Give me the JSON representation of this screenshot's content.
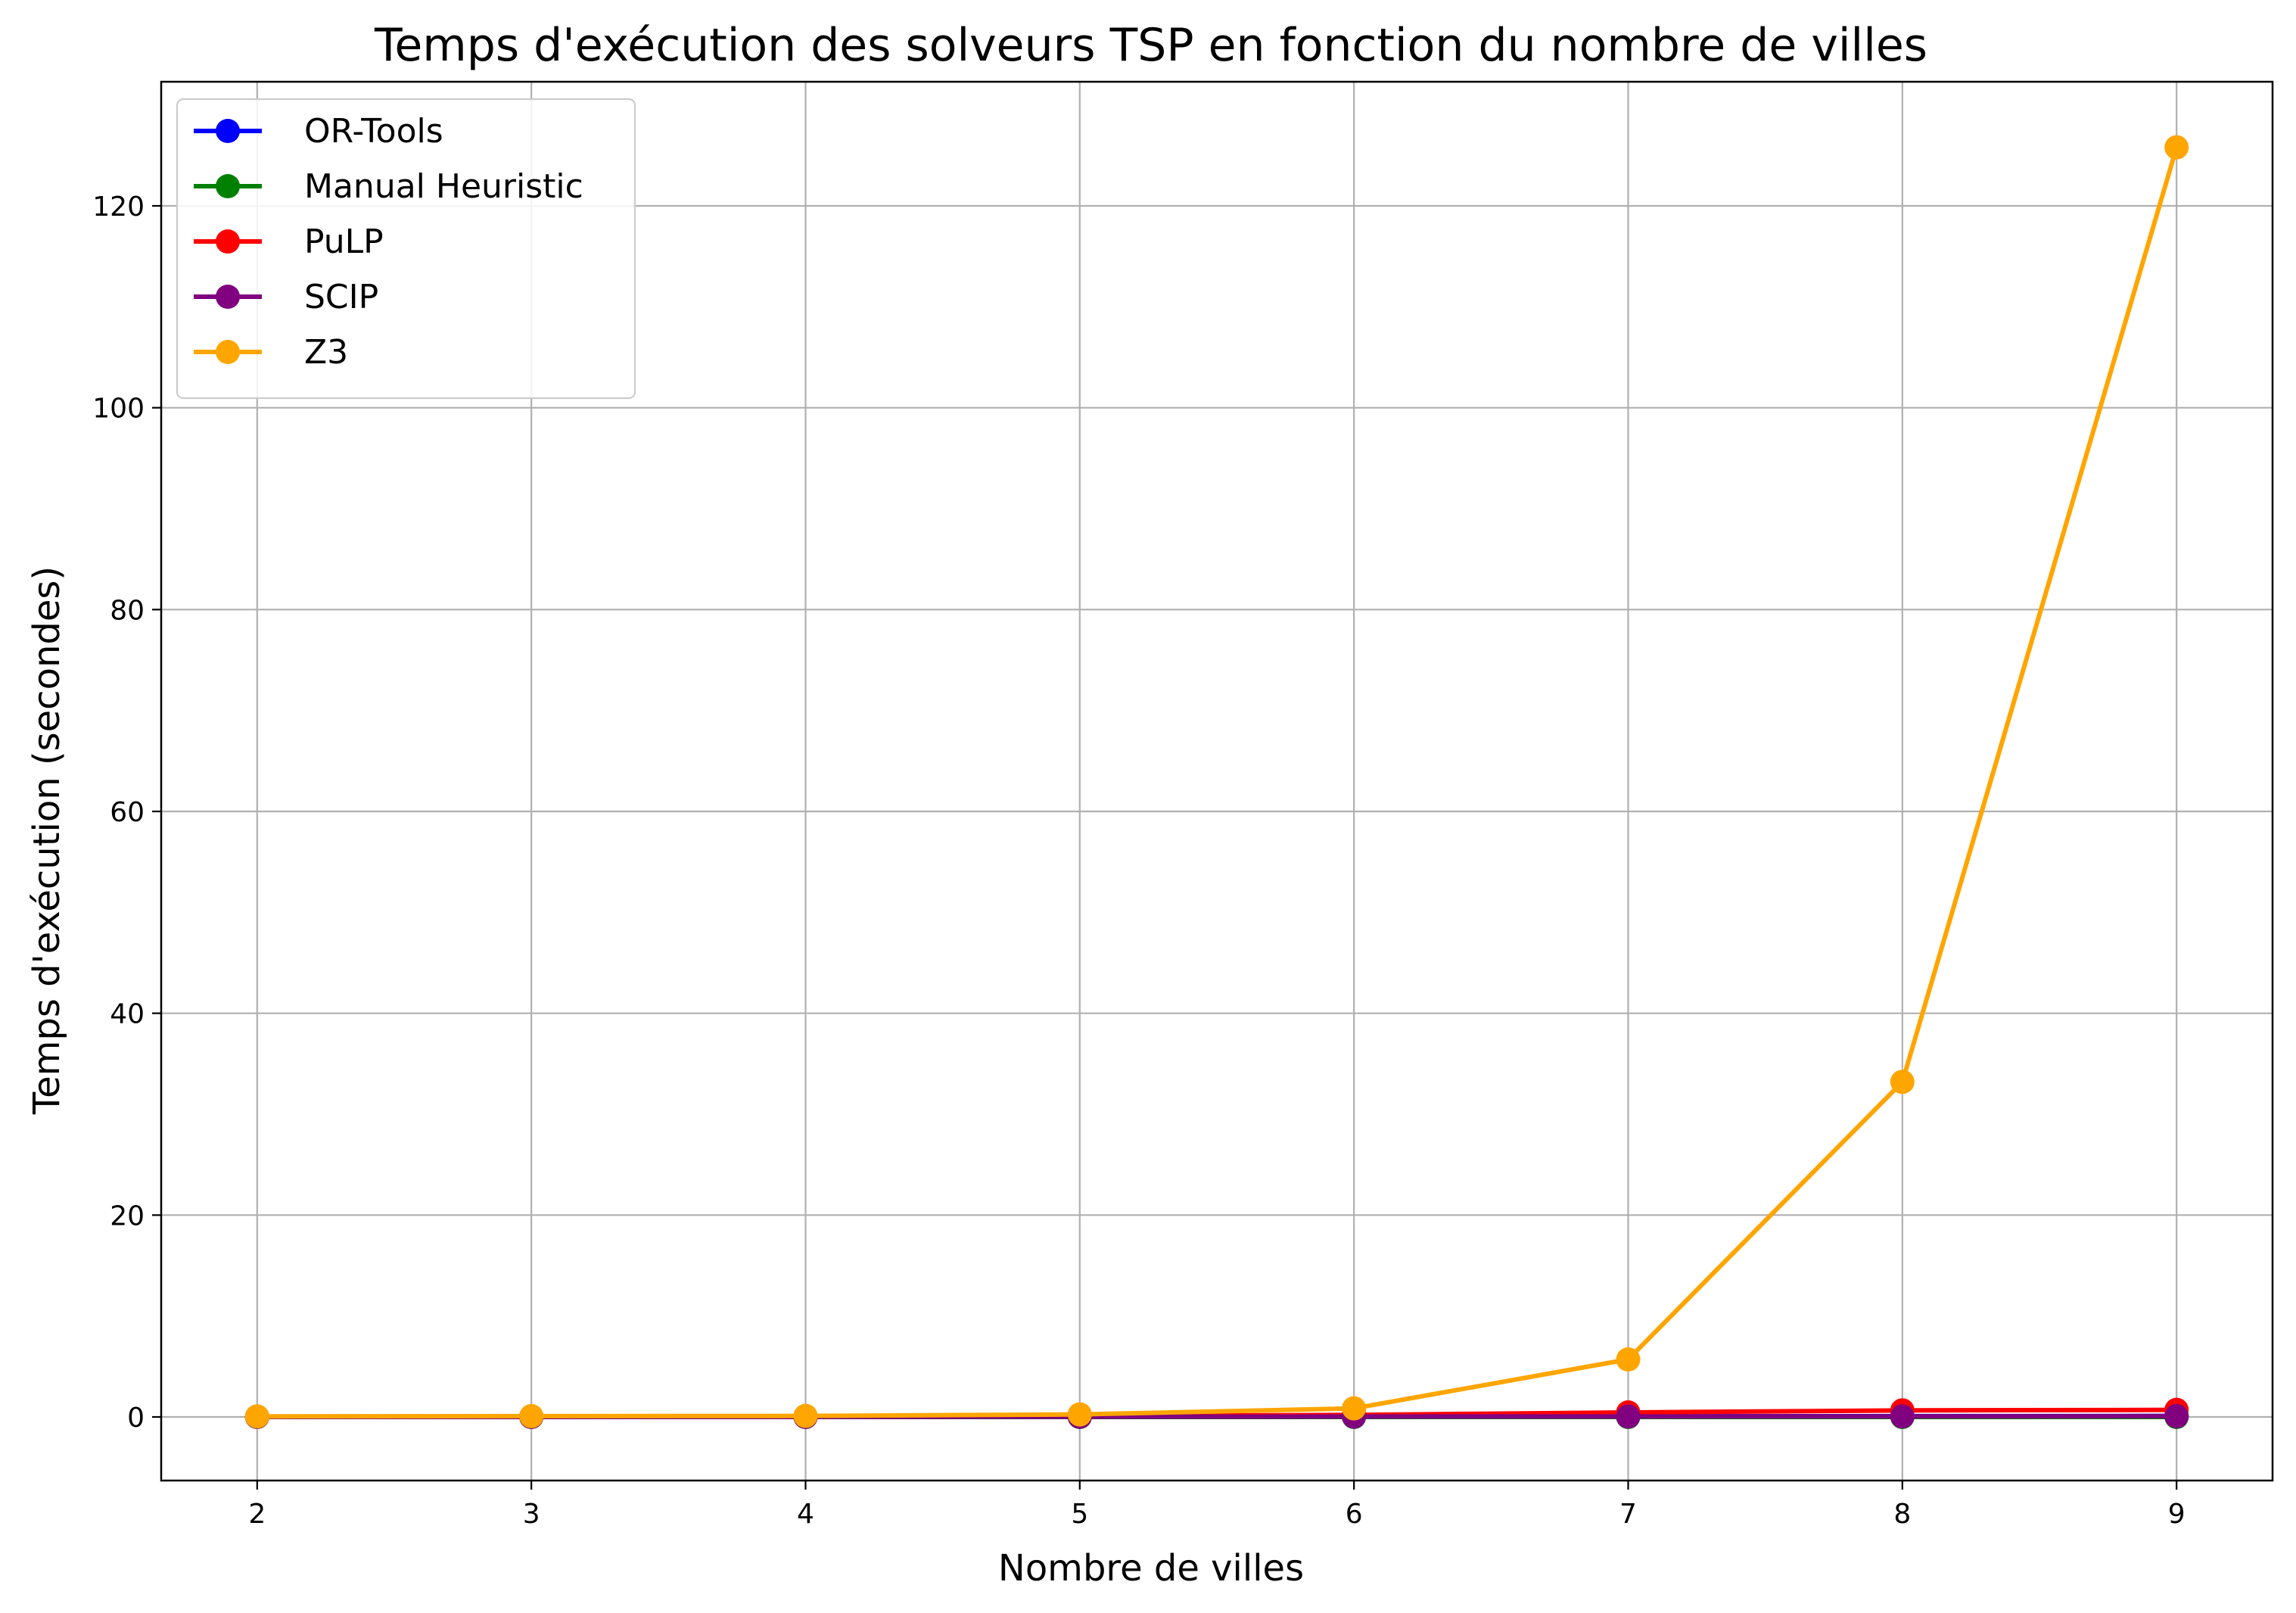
{
  "chart_data": {
    "type": "line",
    "title": "Temps d'exécution des solveurs TSP en fonction du nombre de villes",
    "xlabel": "Nombre de villes",
    "ylabel": "Temps d'exécution (secondes)",
    "x": [
      2,
      3,
      4,
      5,
      6,
      7,
      8,
      9
    ],
    "xlim": [
      1.65,
      9.35
    ],
    "ylim": [
      -6.3,
      132.3
    ],
    "xticks": [
      2,
      3,
      4,
      5,
      6,
      7,
      8,
      9
    ],
    "yticks": [
      0,
      20,
      40,
      60,
      80,
      100,
      120
    ],
    "grid": true,
    "legend_position": "top-left",
    "series": [
      {
        "name": "OR-Tools",
        "color": "#0000ff",
        "values": [
          0.01,
          0.01,
          0.01,
          0.02,
          0.05,
          0.06,
          0.08,
          0.1
        ]
      },
      {
        "name": "Manual Heuristic",
        "color": "#008000",
        "values": [
          0.0,
          0.0,
          0.0,
          0.0,
          0.0,
          0.0,
          0.0,
          0.0
        ]
      },
      {
        "name": "PuLP",
        "color": "#ff0000",
        "values": [
          0.03,
          0.03,
          0.05,
          0.1,
          0.2,
          0.45,
          0.65,
          0.7
        ]
      },
      {
        "name": "SCIP",
        "color": "#800080",
        "values": [
          0.01,
          0.01,
          0.01,
          0.02,
          0.04,
          0.05,
          0.06,
          0.08
        ]
      },
      {
        "name": "Z3",
        "color": "#ffa500",
        "values": [
          0.05,
          0.08,
          0.1,
          0.25,
          0.85,
          5.7,
          33.2,
          125.8
        ]
      }
    ]
  }
}
